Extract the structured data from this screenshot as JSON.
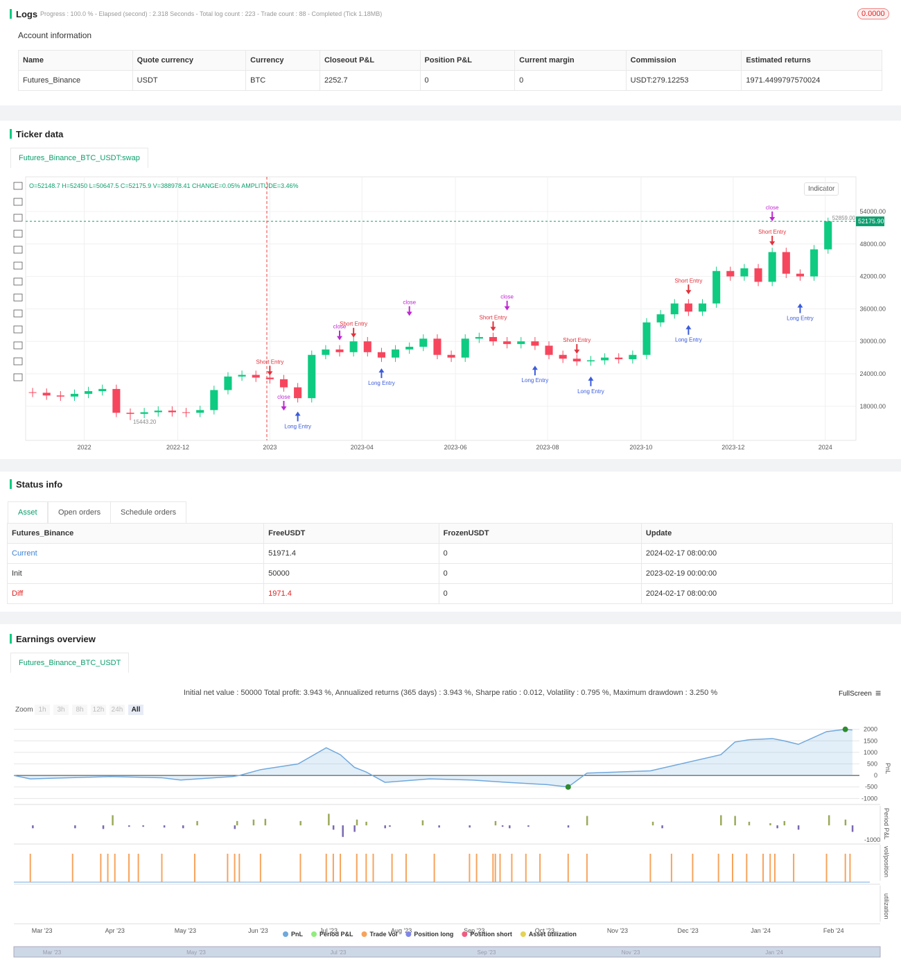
{
  "logs": {
    "title": "Logs",
    "progress": "Progress : 100.0 % - Elapsed (second) : 2.318  Seconds - Total log count : 223 - Trade count : 88 - Completed (Tick 1.18MB)",
    "badge": "0.0000"
  },
  "account": {
    "title": "Account information",
    "columns": [
      "Name",
      "Quote currency",
      "Currency",
      "Closeout P&L",
      "Position P&L",
      "Current margin",
      "Commission",
      "Estimated returns"
    ],
    "rows": [
      [
        "Futures_Binance",
        "USDT",
        "BTC",
        "2252.7",
        "0",
        "0",
        "USDT:279.12253",
        "1971.4499797570024"
      ]
    ]
  },
  "ticker": {
    "title": "Ticker data",
    "tab": "Futures_Binance_BTC_USDT:swap",
    "indicator": "Indicator"
  },
  "status": {
    "title": "Status info",
    "tabs": [
      "Asset",
      "Open orders",
      "Schedule orders"
    ],
    "columns": [
      "Futures_Binance",
      "FreeUSDT",
      "FrozenUSDT",
      "Update"
    ],
    "rows": [
      [
        "Current",
        "51971.4",
        "0",
        "2024-02-17 08:00:00"
      ],
      [
        "Init",
        "50000",
        "0",
        "2023-02-19 00:00:00"
      ],
      [
        "Diff",
        "1971.4",
        "0",
        "2024-02-17 08:00:00"
      ]
    ],
    "row_colors": [
      "#3b82d6",
      "#333333",
      "#e02020"
    ]
  },
  "earnings": {
    "title": "Earnings overview",
    "tab": "Futures_Binance_BTC_USDT",
    "summary": "Initial net value : 50000 Total profit: 3.943 %, Annualized returns (365 days) : 3.943 %, Sharpe ratio : 0.012, Volatility : 0.795 %, Maximum drawdown : 3.250 %",
    "fullscreen": "FullScreen",
    "zoom": "Zoom",
    "zoom_buttons": [
      "1h",
      "3h",
      "8h",
      "12h",
      "24h",
      "All"
    ],
    "navigator_labels": [
      "Mar '23",
      "May '23",
      "Jul '23",
      "Sep '23",
      "Nov '23",
      "Jan '24"
    ]
  },
  "chart_data": [
    {
      "type": "candlestick",
      "info": "O=52148.7 H=52450 L=50647.5 C=52175.9 V=388978.41 CHANGE=0.05% AMPLITUDE=3.46%",
      "up_color": "#0ecb81",
      "down_color": "#f6465d",
      "last_price": {
        "value": 52175.9,
        "label": "52175.90"
      },
      "high_label": {
        "value": 52859,
        "label": "52859.00"
      },
      "low_label": {
        "value": 15443.2,
        "label": "15443.20"
      },
      "xlim": [
        -0.5,
        59
      ],
      "xticks": [
        {
          "value": 3.7,
          "label": "2022"
        },
        {
          "value": 10.4,
          "label": "2022-12"
        },
        {
          "value": 17,
          "label": "2023"
        },
        {
          "value": 23.6,
          "label": "2023-04"
        },
        {
          "value": 30.3,
          "label": "2023-06"
        },
        {
          "value": 36.9,
          "label": "2023-08"
        },
        {
          "value": 43.6,
          "label": "2023-10"
        },
        {
          "value": 50.2,
          "label": "2023-12"
        },
        {
          "value": 56.8,
          "label": "2024"
        }
      ],
      "ylim": [
        11700,
        60400
      ],
      "yticks": [
        {
          "value": 18000,
          "label": "18000.00"
        },
        {
          "value": 24000,
          "label": "24000.00"
        },
        {
          "value": 30000,
          "label": "30000.00"
        },
        {
          "value": 36000,
          "label": "36000.00"
        },
        {
          "value": 42000,
          "label": "42000.00"
        },
        {
          "value": 48000,
          "label": "48000.00"
        },
        {
          "value": 54000,
          "label": "54000.00"
        }
      ],
      "open": [
        20600,
        20500,
        20000,
        19800,
        20300,
        20800,
        21200,
        16800,
        16600,
        16900,
        17200,
        16900,
        16800,
        17300,
        21000,
        23500,
        23800,
        23300,
        23000,
        21500,
        19500,
        27500,
        28500,
        28000,
        30000,
        28000,
        27000,
        28500,
        29000,
        30500,
        27500,
        27000,
        30500,
        30800,
        30000,
        29500,
        30000,
        29200,
        27500,
        26800,
        26300,
        26500,
        27000,
        26700,
        27500,
        33500,
        35000,
        37000,
        35500,
        37000,
        43000,
        42000,
        43500,
        41000,
        46500,
        42500,
        42000,
        47000
      ],
      "high": [
        21400,
        21300,
        20800,
        21100,
        21600,
        22000,
        22000,
        17600,
        17700,
        18000,
        18000,
        17700,
        18100,
        21800,
        24300,
        24600,
        24600,
        24100,
        23800,
        22300,
        28300,
        29300,
        29300,
        30800,
        30800,
        28800,
        29300,
        29800,
        31300,
        31300,
        28300,
        31300,
        31600,
        31600,
        30800,
        30800,
        30800,
        30000,
        28300,
        27600,
        27300,
        27800,
        27800,
        28300,
        34300,
        35800,
        37800,
        37800,
        37800,
        43800,
        43800,
        44300,
        44300,
        47300,
        47300,
        43300,
        47800,
        52859
      ],
      "low": [
        19700,
        19200,
        19000,
        19000,
        19500,
        20000,
        16000,
        15443.2,
        15800,
        16100,
        16100,
        16000,
        16000,
        16500,
        20200,
        22700,
        22500,
        22200,
        20700,
        18700,
        18700,
        26700,
        27200,
        27200,
        27200,
        26200,
        26200,
        27700,
        28200,
        26700,
        26200,
        26200,
        29700,
        29200,
        28700,
        28700,
        28400,
        26700,
        26000,
        25500,
        25500,
        25700,
        25900,
        25900,
        26700,
        32700,
        34200,
        34700,
        34700,
        36200,
        41200,
        41200,
        40200,
        40200,
        41700,
        41200,
        41200,
        46200
      ],
      "close": [
        20500,
        20000,
        19800,
        20300,
        20800,
        21200,
        16800,
        16600,
        16900,
        17200,
        16900,
        16800,
        17300,
        21000,
        23500,
        23800,
        23300,
        23000,
        21500,
        19500,
        27500,
        28500,
        28000,
        30000,
        28000,
        27000,
        28500,
        29000,
        30500,
        27500,
        27000,
        30500,
        30800,
        30000,
        29500,
        30000,
        29200,
        27500,
        26800,
        26300,
        26500,
        27000,
        26700,
        27500,
        33500,
        35000,
        37000,
        35500,
        37000,
        43000,
        42000,
        43500,
        41000,
        46500,
        42500,
        42000,
        47000,
        52175.9
      ],
      "signals": [
        {
          "text": "Short Entry",
          "kind": "short",
          "x": 17,
          "price": 25500
        },
        {
          "text": "close",
          "kind": "close",
          "x": 18,
          "price": 19000
        },
        {
          "text": "Long Entry",
          "kind": "long",
          "x": 19,
          "price": 16500
        },
        {
          "text": "close",
          "kind": "close",
          "x": 22,
          "price": 32000
        },
        {
          "text": "Short Entry",
          "kind": "short",
          "x": 23,
          "price": 32500
        },
        {
          "text": "Long Entry",
          "kind": "long",
          "x": 25,
          "price": 24500
        },
        {
          "text": "close",
          "kind": "close",
          "x": 27,
          "price": 36500
        },
        {
          "text": "Short Entry",
          "kind": "short",
          "x": 33,
          "price": 33700
        },
        {
          "text": "close",
          "kind": "close",
          "x": 34,
          "price": 37500
        },
        {
          "text": "Long Entry",
          "kind": "long",
          "x": 36,
          "price": 25000
        },
        {
          "text": "Short Entry",
          "kind": "short",
          "x": 39,
          "price": 29500
        },
        {
          "text": "Long Entry",
          "kind": "long",
          "x": 40,
          "price": 23000
        },
        {
          "text": "Short Entry",
          "kind": "short",
          "x": 47,
          "price": 40500
        },
        {
          "text": "Long Entry",
          "kind": "long",
          "x": 47,
          "price": 32500
        },
        {
          "text": "close",
          "kind": "close",
          "x": 53,
          "price": 54000
        },
        {
          "text": "Short Entry",
          "kind": "short",
          "x": 53,
          "price": 49500
        },
        {
          "text": "Long Entry",
          "kind": "long",
          "x": 55,
          "price": 36500
        }
      ],
      "signal_colors": {
        "short": "#e0323c",
        "long": "#3b5bdb",
        "close": "#c026d3"
      }
    },
    {
      "type": "line",
      "title": "PnL",
      "xlim": [
        0,
        360
      ],
      "xticks": [
        {
          "value": 12,
          "label": "Mar '23"
        },
        {
          "value": 43,
          "label": "Apr '23"
        },
        {
          "value": 73,
          "label": "May '23"
        },
        {
          "value": 104,
          "label": "Jun '23"
        },
        {
          "value": 134,
          "label": "Jul '23"
        },
        {
          "value": 165,
          "label": "Aug '23"
        },
        {
          "value": 196,
          "label": "Sep '23"
        },
        {
          "value": 226,
          "label": "Oct '23"
        },
        {
          "value": 257,
          "label": "Nov '23"
        },
        {
          "value": 287,
          "label": "Dec '23"
        },
        {
          "value": 318,
          "label": "Jan '24"
        },
        {
          "value": 349,
          "label": "Feb '24"
        }
      ],
      "ylim": [
        -1200,
        2200
      ],
      "yticks": [
        -1000,
        -500,
        0,
        500,
        1000,
        1500,
        2000
      ],
      "series": [
        {
          "name": "PnL",
          "color": "#6fa8dc",
          "x": [
            0,
            7,
            41,
            63,
            71,
            93,
            96,
            105,
            121,
            133,
            139,
            145,
            150,
            158,
            177,
            195,
            210,
            227,
            236,
            244,
            271,
            301,
            307,
            313,
            323,
            328,
            334,
            346,
            354,
            357
          ],
          "values": [
            0,
            -150,
            -50,
            -100,
            -200,
            -50,
            0,
            250,
            500,
            1200,
            900,
            350,
            150,
            -300,
            -150,
            -200,
            -300,
            -400,
            -500,
            100,
            200,
            900,
            1450,
            1550,
            1600,
            1500,
            1350,
            1900,
            2000,
            1970
          ]
        }
      ],
      "max_color": "#2e8b2e",
      "min_color": "#2e8b2e"
    },
    {
      "type": "bar",
      "title": "Period P&L",
      "ylim": [
        -1050,
        1300
      ],
      "yticks": [
        -1000
      ],
      "positive_color": "#9aaa5a",
      "negative_color": "#7b68b0",
      "x": [
        8,
        26,
        38,
        42,
        49,
        55,
        64,
        72,
        78,
        94,
        95,
        102,
        107,
        122,
        134,
        136,
        140,
        145,
        146,
        150,
        158,
        160,
        174,
        181,
        194,
        205,
        208,
        211,
        219,
        236,
        244,
        272,
        276,
        301,
        307,
        313,
        322,
        325,
        328,
        334,
        347,
        354,
        357
      ],
      "values": [
        -200,
        -200,
        -250,
        700,
        -100,
        -100,
        -150,
        -200,
        300,
        -250,
        300,
        400,
        450,
        300,
        800,
        -300,
        -800,
        -450,
        400,
        250,
        -200,
        -100,
        350,
        -150,
        -150,
        300,
        -100,
        -200,
        -100,
        -150,
        650,
        250,
        -200,
        700,
        650,
        250,
        150,
        -200,
        300,
        -300,
        700,
        400,
        -450
      ]
    },
    {
      "type": "event",
      "title": "vol/position",
      "color": "#f7a35c",
      "x": [
        7,
        25,
        37,
        40,
        43,
        49,
        53,
        63,
        77,
        91,
        94,
        96,
        105,
        122,
        133,
        136,
        139,
        146,
        150,
        153,
        161,
        167,
        179,
        194,
        197,
        204,
        205,
        207,
        212,
        218,
        224,
        236,
        244,
        271,
        280,
        289,
        300,
        306,
        312,
        319,
        322,
        324,
        332,
        346,
        354,
        356
      ]
    },
    {
      "type": "empty",
      "title": "utilization"
    },
    {
      "type": "legend",
      "series": [
        {
          "name": "PnL",
          "color": "#6fa8dc"
        },
        {
          "name": "Period P&L",
          "color": "#90ed7d"
        },
        {
          "name": "Trade Vol",
          "color": "#f7a35c"
        },
        {
          "name": "Position long",
          "color": "#8085e9"
        },
        {
          "name": "Position short",
          "color": "#f15c80"
        },
        {
          "name": "Asset utilization",
          "color": "#e4d354"
        }
      ]
    }
  ]
}
